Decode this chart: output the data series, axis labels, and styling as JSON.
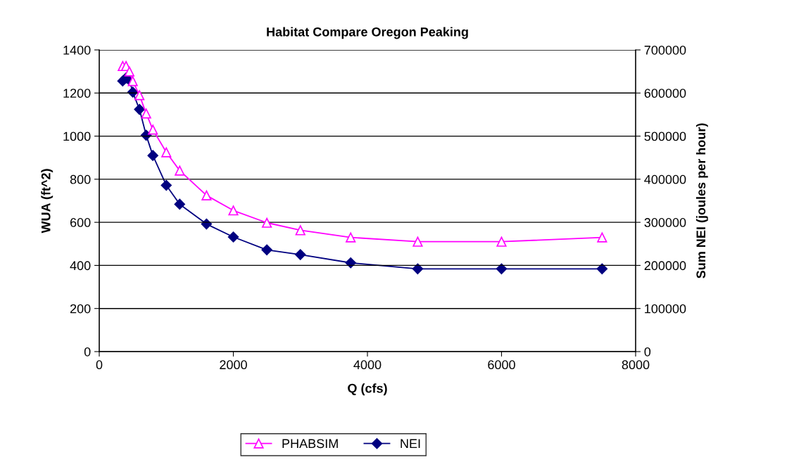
{
  "chart_data": {
    "type": "line",
    "title": "Habitat Compare Oregon Peaking",
    "xlabel": "Q (cfs)",
    "ylabel": "WUA (ft^2)",
    "y2label": "Sum NEI (joules per hour)",
    "x": [
      350,
      400,
      450,
      500,
      600,
      700,
      800,
      1000,
      1200,
      1600,
      2000,
      2500,
      3000,
      3750,
      4750,
      6000,
      7500
    ],
    "series": [
      {
        "name": "PHABSIM",
        "color": "#ff00ff",
        "marker": "triangle",
        "values": [
          1325,
          1325,
          1300,
          1255,
          1190,
          1105,
          1030,
          925,
          840,
          725,
          655,
          598,
          563,
          530,
          510,
          510,
          530
        ]
      },
      {
        "name": "NEI",
        "color": "#000080",
        "marker": "diamond",
        "axis": "y2",
        "values": [
          628000,
          635000,
          630000,
          602000,
          562000,
          502000,
          455000,
          386000,
          342000,
          296000,
          266000,
          236000,
          225000,
          206000,
          192000,
          192000,
          192000
        ]
      }
    ],
    "xlim": [
      0,
      8000
    ],
    "xticks": [
      0,
      2000,
      4000,
      6000,
      8000
    ],
    "ylim": [
      0,
      1400
    ],
    "yticks": [
      0,
      200,
      400,
      600,
      800,
      1000,
      1200,
      1400
    ],
    "y2lim": [
      0,
      700000
    ],
    "y2ticks": [
      0,
      100000,
      200000,
      300000,
      400000,
      500000,
      600000,
      700000
    ],
    "grid": "y",
    "legend": "bottom",
    "line_style": "solid"
  }
}
